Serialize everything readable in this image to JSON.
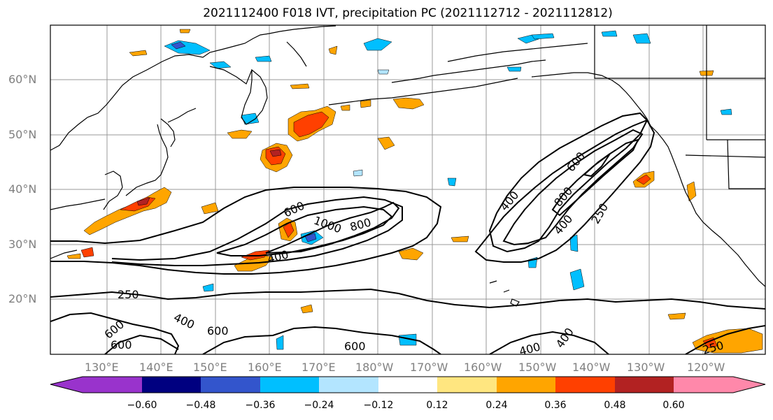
{
  "title": "2021112400 F018 IVT, precipitation PC (2021112712 - 2021112812)",
  "lat_labels": [
    "60°N",
    "50°N",
    "40°N",
    "30°N",
    "20°N"
  ],
  "lon_labels": [
    "130°E",
    "140°E",
    "150°E",
    "160°E",
    "170°E",
    "180°W",
    "170°W",
    "160°W",
    "150°W",
    "140°W",
    "130°W",
    "120°W"
  ],
  "contour_labels": [
    "600",
    "1000",
    "800",
    "400",
    "400",
    "600",
    "800",
    "400",
    "250",
    "250",
    "600",
    "400",
    "600",
    "600",
    "600",
    "400",
    "400",
    "250"
  ],
  "colorbar": {
    "ticks": [
      "−0.60",
      "−0.48",
      "−0.36",
      "−0.24",
      "−0.12",
      "0.12",
      "0.24",
      "0.36",
      "0.48",
      "0.60"
    ],
    "colors": [
      "#9933cc",
      "#000080",
      "#3355cc",
      "#00bfff",
      "#b3e5ff",
      "#ffffff",
      "#ffe680",
      "#ffa500",
      "#ff4000",
      "#b22222",
      "#ff88aa"
    ]
  },
  "colors": {
    "coast": "#000000",
    "grid": "#999999",
    "contour": "#000000"
  }
}
